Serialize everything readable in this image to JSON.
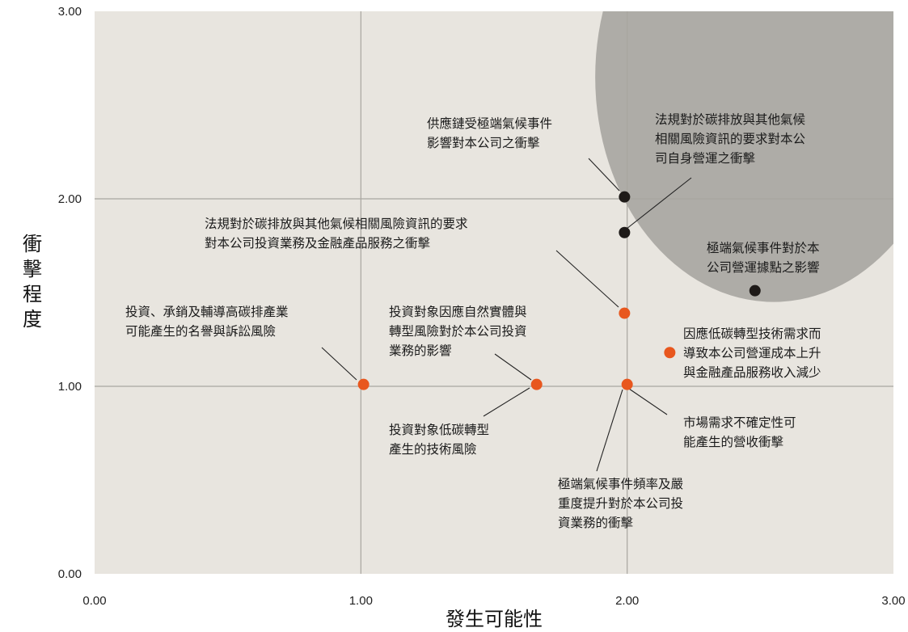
{
  "chart_data": {
    "type": "scatter",
    "xlabel": "發生可能性",
    "ylabel": "衝擊程度",
    "xlim": [
      0,
      3
    ],
    "ylim": [
      0,
      3
    ],
    "x_ticks": [
      "0.00",
      "1.00",
      "2.00",
      "3.00"
    ],
    "y_ticks": [
      "0.00",
      "1.00",
      "2.00",
      "3.00"
    ],
    "grid": true,
    "highlight_region": {
      "center": [
        2.55,
        2.65
      ],
      "radius_x": 0.67,
      "radius_y": 1.2,
      "color": "#9b9894"
    },
    "colors": {
      "high": "#1e1a18",
      "medium": "#e8571e",
      "grid": "#a9a6a0",
      "background": "#e8e5df"
    },
    "points": [
      {
        "x": 1.99,
        "y": 2.01,
        "group": "high",
        "label": [
          "供應鏈受極端氣候事件",
          "影響對本公司之衝擊"
        ]
      },
      {
        "x": 1.99,
        "y": 1.82,
        "group": "high",
        "label": [
          "法規對於碳排放與其他氣候",
          "相關風險資訊的要求對本公",
          "司自身營運之衝擊"
        ]
      },
      {
        "x": 2.48,
        "y": 1.51,
        "group": "high",
        "label": [
          "極端氣候事件對於本",
          "公司營運據點之影響"
        ]
      },
      {
        "x": 1.99,
        "y": 1.39,
        "group": "medium",
        "label": [
          "法規對於碳排放與其他氣候相關風險資訊的要求",
          "對本公司投資業務及金融產品服務之衝擊"
        ]
      },
      {
        "x": 2.16,
        "y": 1.18,
        "group": "medium",
        "label": [
          "因應低碳轉型技術需求而",
          "導致本公司營運成本上升",
          "與金融產品服務收入減少"
        ]
      },
      {
        "x": 1.01,
        "y": 1.01,
        "group": "medium",
        "label": [
          "投資、承銷及輔導高碳排產業",
          "可能產生的名譽與訴訟風險"
        ]
      },
      {
        "x": 1.66,
        "y": 1.01,
        "group": "medium",
        "label": [
          "投資對象因應自然實體與",
          "轉型風險對於本公司投資",
          "業務的影響"
        ]
      },
      {
        "x": 2.0,
        "y": 1.01,
        "group": "medium",
        "label": [
          "極端氣候事件頻率及嚴",
          "重度提升對於本公司投",
          "資業務的衝擊"
        ]
      },
      {
        "x": 2.0,
        "y": 1.01,
        "group": "medium",
        "label": [
          "市場需求不確定性可",
          "能產生的營收衝擊"
        ]
      },
      {
        "x": 1.66,
        "y": 1.01,
        "group": "medium",
        "label": [
          "投資對象低碳轉型",
          "產生的技術風險"
        ]
      }
    ]
  }
}
